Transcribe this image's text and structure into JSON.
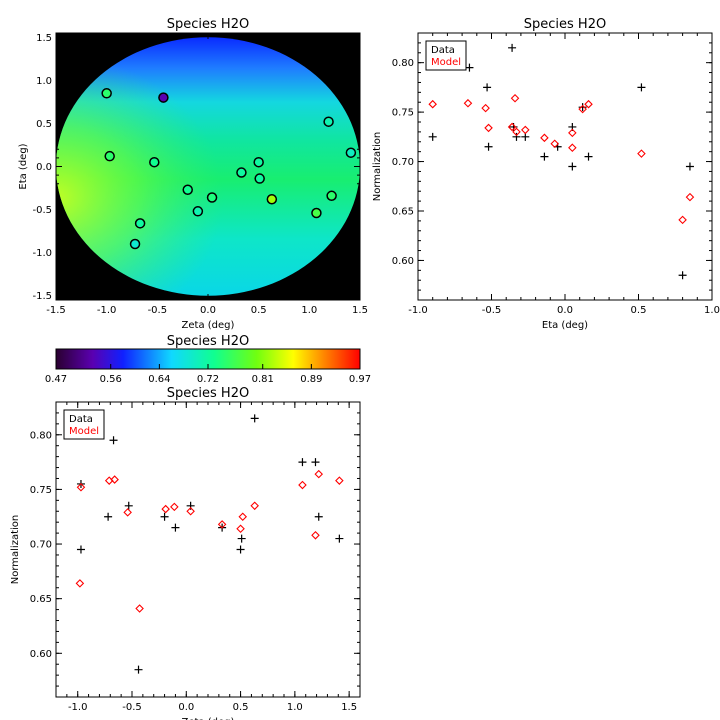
{
  "chart_data": [
    {
      "type": "heatmap",
      "title": "Species H2O",
      "xlabel": "Zeta (deg)",
      "ylabel": "Eta (deg)",
      "xlim": [
        -1.5,
        1.5
      ],
      "ylim": [
        -1.55,
        1.55
      ],
      "xticks": [
        "-1.5",
        "-1.0",
        "-0.5",
        "0.0",
        "0.5",
        "1.0",
        "1.5"
      ],
      "yticks": [
        "-1.5",
        "-1.0",
        "-0.5",
        "0.0",
        "0.5",
        "1.0",
        "1.5"
      ],
      "points": [
        {
          "zeta": -1.0,
          "eta": 0.85,
          "value": 0.75
        },
        {
          "zeta": -0.44,
          "eta": 0.8,
          "value": 0.53
        },
        {
          "zeta": -0.97,
          "eta": 0.12,
          "value": 0.75
        },
        {
          "zeta": -0.53,
          "eta": 0.05,
          "value": 0.73
        },
        {
          "zeta": -0.2,
          "eta": -0.27,
          "value": 0.73
        },
        {
          "zeta": -0.1,
          "eta": -0.52,
          "value": 0.71
        },
        {
          "zeta": 0.04,
          "eta": -0.36,
          "value": 0.74
        },
        {
          "zeta": 0.33,
          "eta": -0.07,
          "value": 0.72
        },
        {
          "zeta": 0.5,
          "eta": 0.05,
          "value": 0.72
        },
        {
          "zeta": 0.51,
          "eta": -0.14,
          "value": 0.72
        },
        {
          "zeta": 0.63,
          "eta": -0.38,
          "value": 0.82
        },
        {
          "zeta": 1.07,
          "eta": -0.54,
          "value": 0.77
        },
        {
          "zeta": 1.19,
          "eta": 0.52,
          "value": 0.71
        },
        {
          "zeta": 1.22,
          "eta": -0.34,
          "value": 0.75
        },
        {
          "zeta": 1.41,
          "eta": 0.16,
          "value": 0.7
        },
        {
          "zeta": -0.67,
          "eta": -0.66,
          "value": 0.72
        },
        {
          "zeta": -0.72,
          "eta": -0.9,
          "value": 0.69
        }
      ]
    },
    {
      "type": "scatter",
      "title": "Species H2O",
      "xlabel": "Eta (deg)",
      "ylabel": "Normalization",
      "xlim": [
        -1.0,
        1.0
      ],
      "ylim": [
        0.56,
        0.83
      ],
      "xticks": [
        "-1.0",
        "-0.5",
        "0.0",
        "0.5",
        "1.0"
      ],
      "yticks": [
        "0.60",
        "0.65",
        "0.70",
        "0.75",
        "0.80"
      ],
      "legend": [
        "Data",
        "Model"
      ],
      "series": [
        {
          "name": "Data",
          "marker": "plus",
          "color": "#000000",
          "x": [
            -0.9,
            -0.65,
            -0.53,
            -0.52,
            -0.36,
            -0.35,
            -0.33,
            -0.27,
            -0.14,
            -0.05,
            0.05,
            0.05,
            0.12,
            0.16,
            0.52,
            0.8,
            0.85
          ],
          "y": [
            0.725,
            0.795,
            0.775,
            0.715,
            0.815,
            0.735,
            0.725,
            0.725,
            0.705,
            0.715,
            0.735,
            0.695,
            0.755,
            0.705,
            0.775,
            0.585,
            0.695
          ]
        },
        {
          "name": "Model",
          "marker": "diamond",
          "color": "#ff0000",
          "x": [
            -0.9,
            -0.66,
            -0.54,
            -0.52,
            -0.36,
            -0.34,
            -0.33,
            -0.27,
            -0.14,
            -0.07,
            0.05,
            0.05,
            0.12,
            0.16,
            0.52,
            0.8,
            0.85
          ],
          "y": [
            0.758,
            0.759,
            0.754,
            0.734,
            0.735,
            0.764,
            0.73,
            0.732,
            0.724,
            0.718,
            0.714,
            0.729,
            0.753,
            0.758,
            0.708,
            0.641,
            0.664
          ]
        }
      ]
    },
    {
      "type": "scatter",
      "title": "Species H2O",
      "xlabel": "Zeta (deg)",
      "ylabel": "Normalization",
      "xlim": [
        -1.2,
        1.6
      ],
      "ylim": [
        0.56,
        0.83
      ],
      "xticks": [
        "-1.0",
        "-0.5",
        "0.0",
        "0.5",
        "1.0",
        "1.5"
      ],
      "yticks": [
        "0.60",
        "0.65",
        "0.70",
        "0.75",
        "0.80"
      ],
      "legend": [
        "Data",
        "Model"
      ],
      "series": [
        {
          "name": "Data",
          "marker": "plus",
          "color": "#000000",
          "x": [
            -0.97,
            -0.97,
            -0.72,
            -0.67,
            -0.53,
            -0.44,
            -0.2,
            -0.1,
            0.04,
            0.33,
            0.5,
            0.51,
            0.63,
            1.07,
            1.19,
            1.22,
            1.41
          ],
          "y": [
            0.695,
            0.755,
            0.725,
            0.795,
            0.735,
            0.585,
            0.725,
            0.715,
            0.735,
            0.715,
            0.695,
            0.705,
            0.815,
            0.775,
            0.775,
            0.725,
            0.705
          ]
        },
        {
          "name": "Model",
          "marker": "diamond",
          "color": "#ff0000",
          "x": [
            -0.98,
            -0.97,
            -0.71,
            -0.66,
            -0.54,
            -0.43,
            -0.19,
            -0.11,
            0.04,
            0.33,
            0.5,
            0.52,
            0.63,
            1.07,
            1.19,
            1.22,
            1.41
          ],
          "y": [
            0.664,
            0.752,
            0.758,
            0.759,
            0.729,
            0.641,
            0.732,
            0.734,
            0.73,
            0.718,
            0.714,
            0.725,
            0.735,
            0.754,
            0.708,
            0.764,
            0.758
          ]
        }
      ]
    },
    {
      "type": "colorbar",
      "title": "Species H2O",
      "ticks": [
        "0.47",
        "0.56",
        "0.64",
        "0.72",
        "0.81",
        "0.89",
        "0.97"
      ],
      "range": [
        0.47,
        0.97
      ]
    }
  ]
}
